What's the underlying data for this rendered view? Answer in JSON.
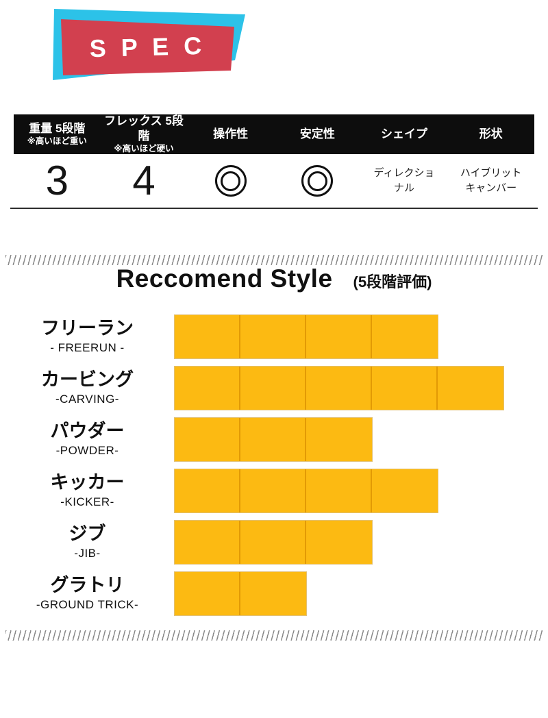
{
  "banner": {
    "title": "S P E C",
    "red_color": "#d2404f",
    "cyan_color": "#2cc2e8"
  },
  "spec_table": {
    "header_bg": "#0d0d0d",
    "columns": [
      {
        "label": "重量 5段階",
        "note": "※高いほど重い",
        "value": "3",
        "value_type": "number"
      },
      {
        "label": "フレックス 5段階",
        "note": "※高いほど硬い",
        "value": "4",
        "value_type": "number"
      },
      {
        "label": "操作性",
        "note": "",
        "value": "double-circle",
        "value_type": "icon"
      },
      {
        "label": "安定性",
        "note": "",
        "value": "double-circle",
        "value_type": "icon"
      },
      {
        "label": "シェイプ",
        "note": "",
        "value": "ディレクショ\nナル",
        "value_type": "text"
      },
      {
        "label": "形状",
        "note": "",
        "value": "ハイブリット\nキャンバー",
        "value_type": "text"
      }
    ]
  },
  "chart_data": {
    "type": "bar",
    "orientation": "horizontal",
    "title": "Reccomend Style",
    "subtitle": "(5段階評価)",
    "xlim": [
      0,
      5
    ],
    "grid": false,
    "legend": false,
    "bar_color": "#fcba12",
    "separator_color": "#e29a05",
    "categories": [
      "フリーラン",
      "カービング",
      "パウダー",
      "キッカー",
      "ジブ",
      "グラトリ"
    ],
    "sub_labels": [
      "- FREERUN -",
      "-CARVING-",
      "-POWDER-",
      "-KICKER-",
      "-JIB-",
      "-GROUND TRICK-"
    ],
    "values": [
      4,
      5,
      3,
      4,
      3,
      2
    ]
  }
}
